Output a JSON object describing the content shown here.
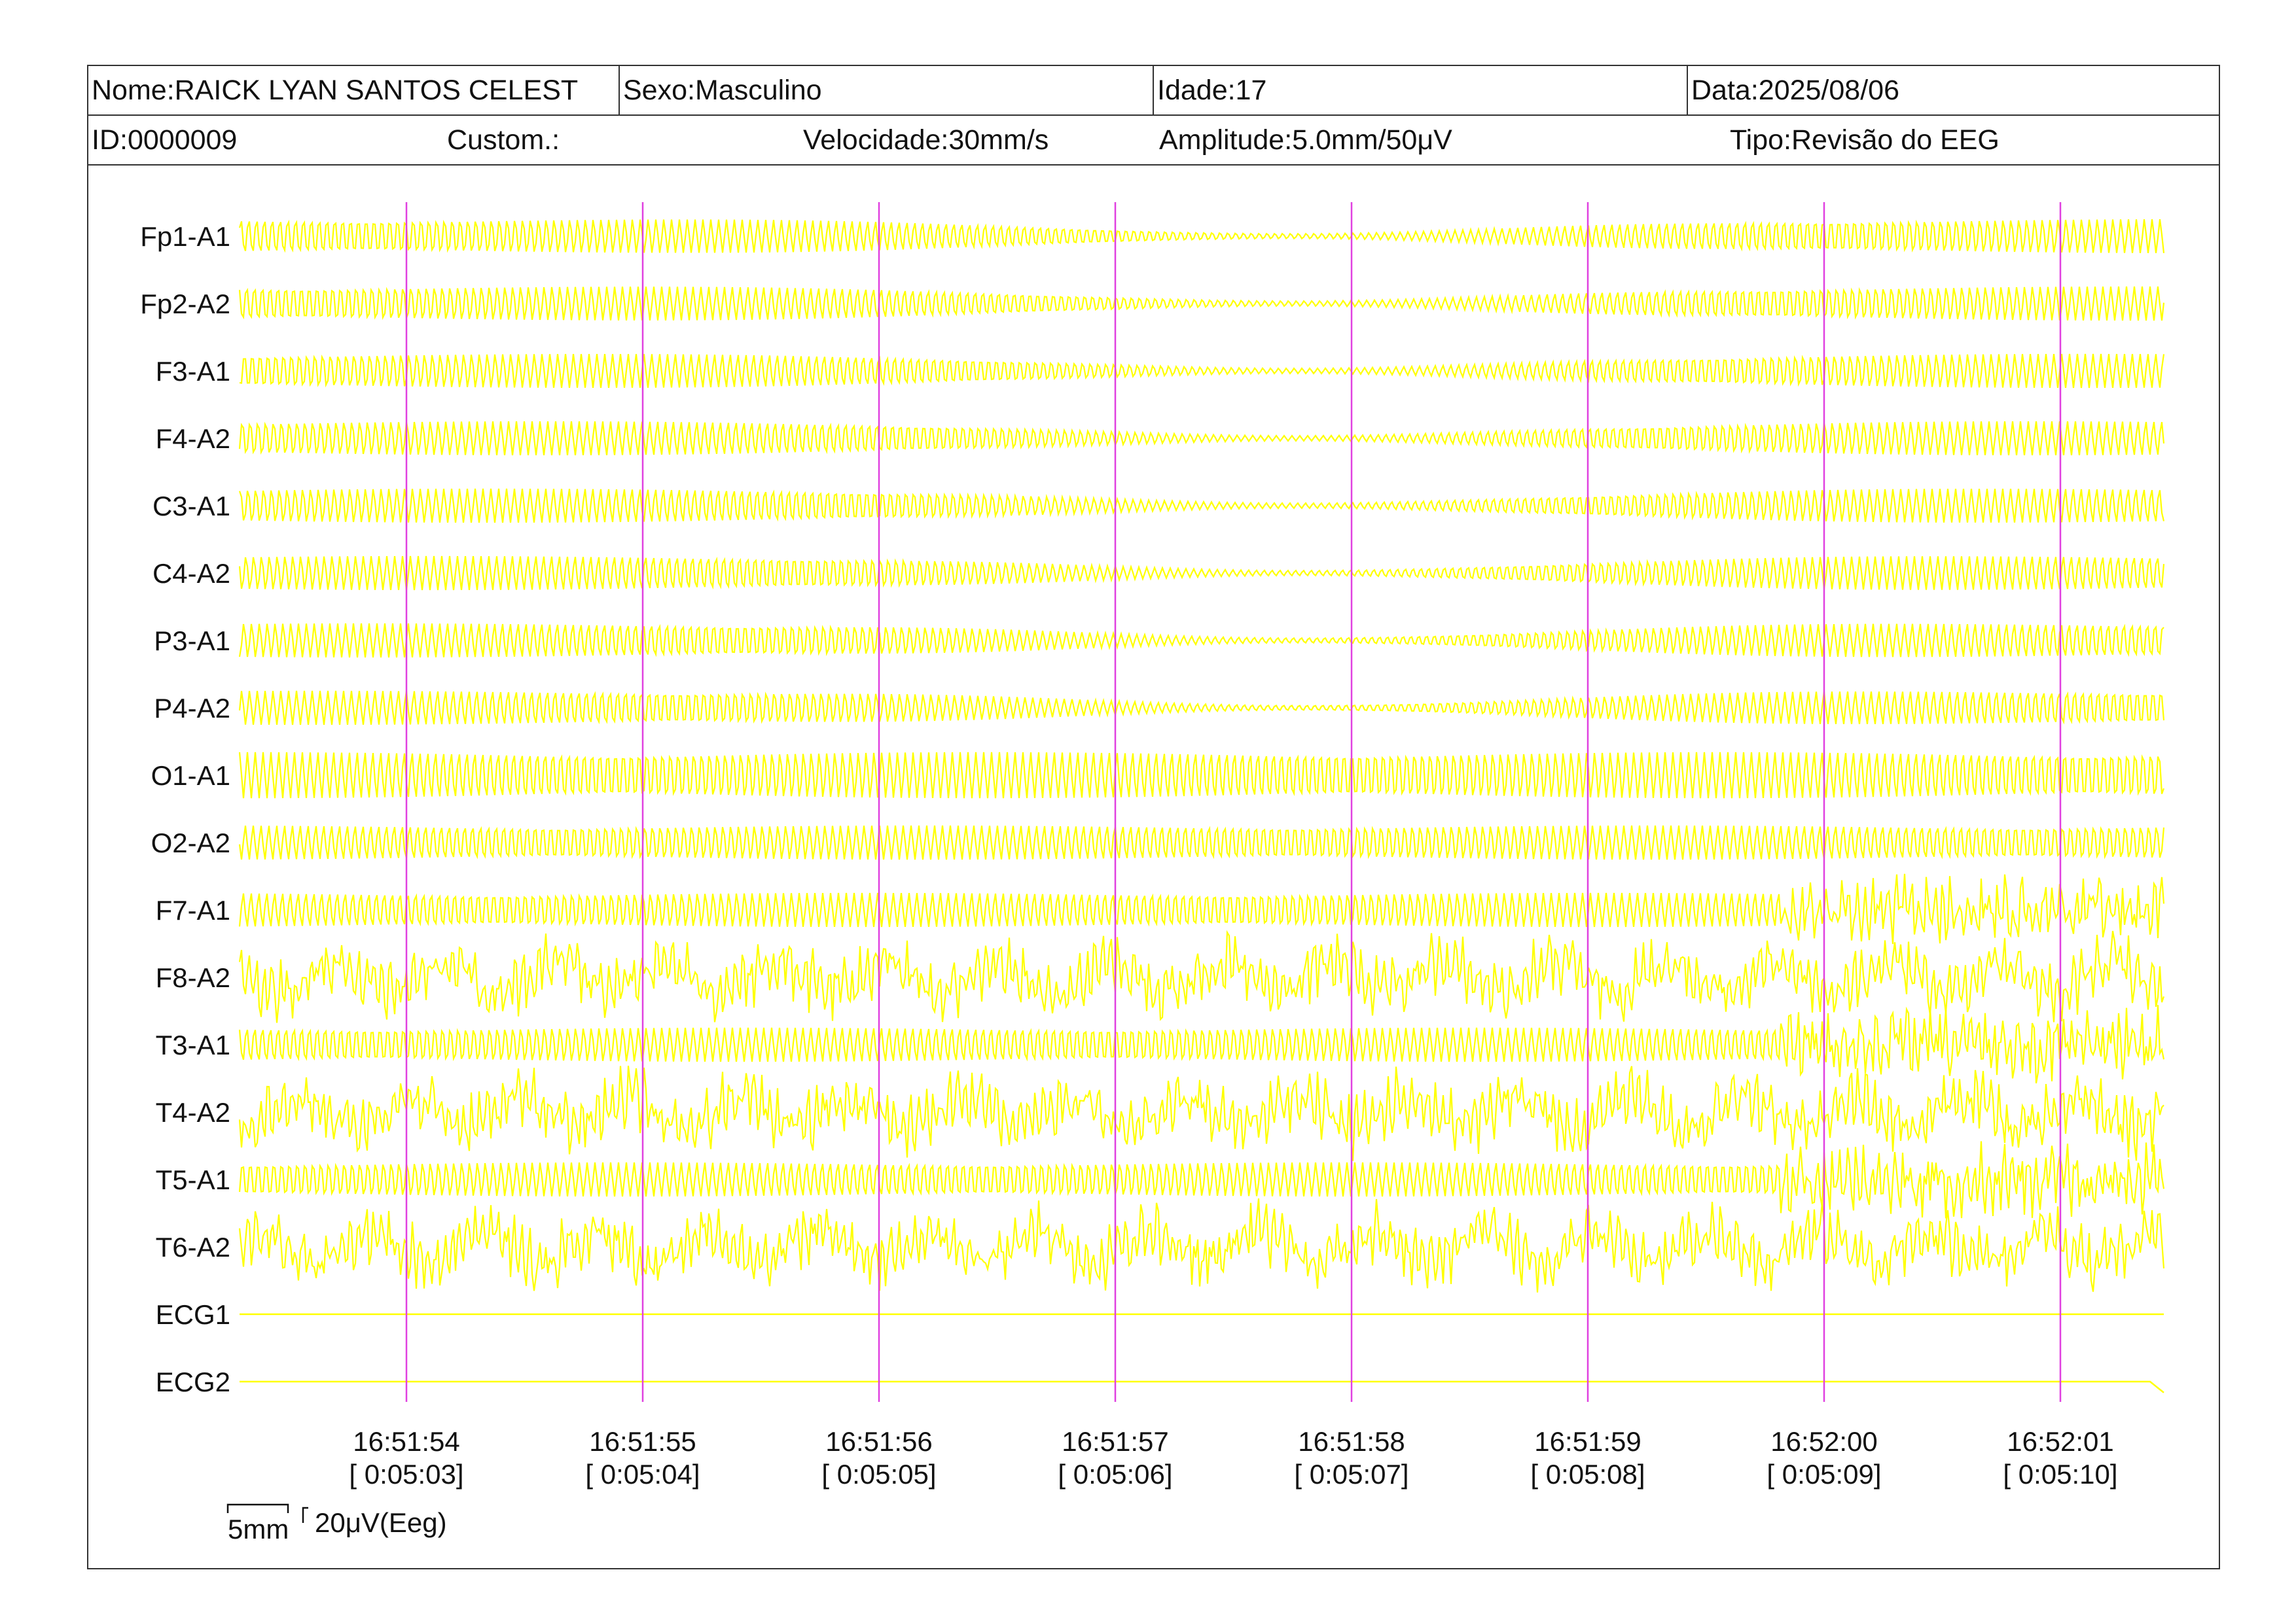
{
  "header": {
    "name": "Nome:RAICK LYAN SANTOS CELEST",
    "sex": "Sexo:Masculino",
    "age": "Idade:17",
    "date": "Data:2025/08/06",
    "id": "ID:0000009",
    "custom": "Custom.:",
    "speed": "Velocidade:30mm/s",
    "amplitude": "Amplitude:5.0mm/50μV",
    "type": "Tipo:Revisão do EEG"
  },
  "channels": [
    "Fp1-A1",
    "Fp2-A2",
    "F3-A1",
    "F4-A2",
    "C3-A1",
    "C4-A2",
    "P3-A1",
    "P4-A2",
    "O1-A1",
    "O2-A2",
    "F7-A1",
    "F8-A2",
    "T3-A1",
    "T4-A2",
    "T5-A1",
    "T6-A2",
    "ECG1",
    "ECG2"
  ],
  "time_marks": [
    {
      "clock": "16:51:54",
      "elapsed": "[ 0:05:03]"
    },
    {
      "clock": "16:51:55",
      "elapsed": "[ 0:05:04]"
    },
    {
      "clock": "16:51:56",
      "elapsed": "[ 0:05:05]"
    },
    {
      "clock": "16:51:57",
      "elapsed": "[ 0:05:06]"
    },
    {
      "clock": "16:51:58",
      "elapsed": "[ 0:05:07]"
    },
    {
      "clock": "16:51:59",
      "elapsed": "[ 0:05:08]"
    },
    {
      "clock": "16:52:00",
      "elapsed": "[ 0:05:09]"
    },
    {
      "clock": "16:52:01",
      "elapsed": "[ 0:05:10]"
    }
  ],
  "scale": {
    "time": "5mm",
    "amplitude": "20μV(Eeg)"
  },
  "colors": {
    "trace": "#ffff00",
    "marker": "#e040e0",
    "border": "#333333",
    "text": "#111111"
  }
}
